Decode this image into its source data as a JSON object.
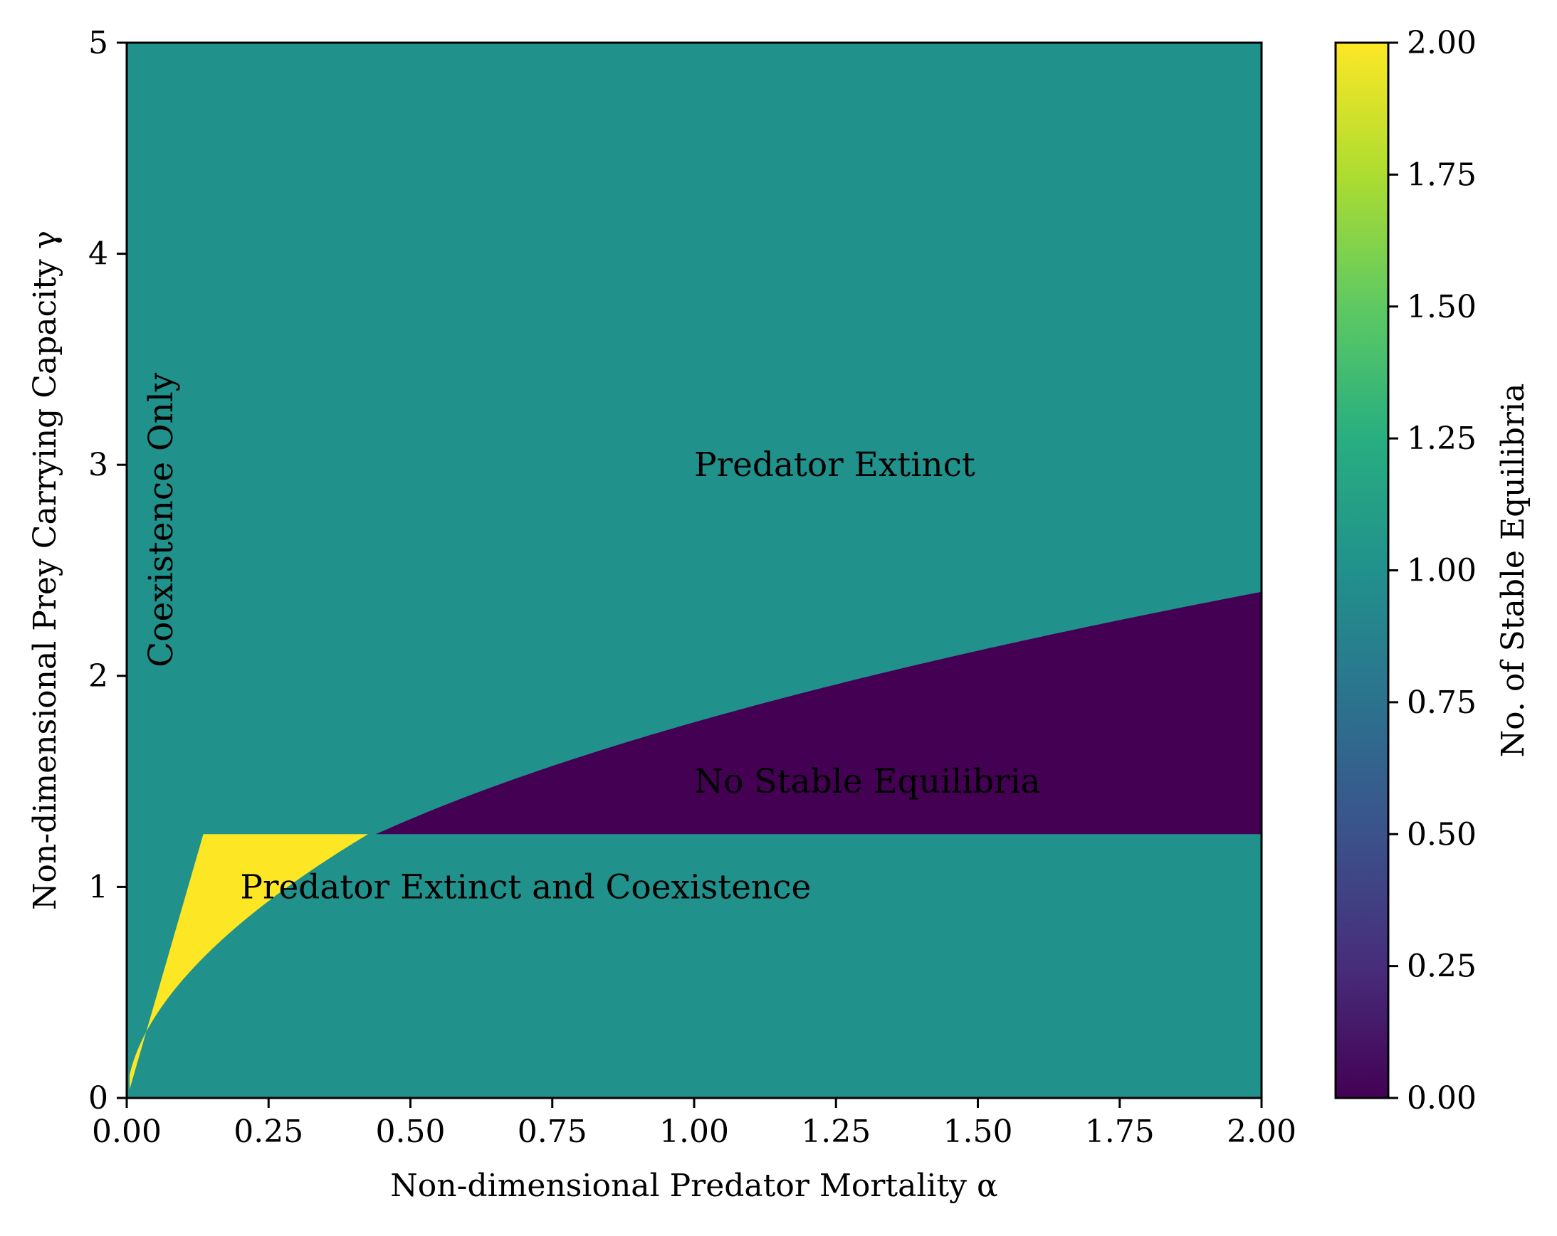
{
  "chart_data": {
    "type": "heatmap",
    "title": "",
    "xlabel": "Non-dimensional Predator Mortality α",
    "ylabel": "Non-dimensional Prey Carrying Capacity γ",
    "xlim": [
      0,
      2
    ],
    "ylim": [
      0,
      5
    ],
    "x_ticks": [
      "0.00",
      "0.25",
      "0.50",
      "0.75",
      "1.00",
      "1.25",
      "1.50",
      "1.75",
      "2.00"
    ],
    "y_ticks": [
      "0",
      "1",
      "2",
      "3",
      "4",
      "5"
    ],
    "colorbar": {
      "label": "No. of Stable Equilibria",
      "range": [
        0,
        2
      ],
      "ticks": [
        "0.00",
        "0.25",
        "0.50",
        "0.75",
        "1.00",
        "1.25",
        "1.50",
        "1.75",
        "2.00"
      ],
      "colormap": "viridis"
    },
    "regions": [
      {
        "label": "Predator Extinct",
        "value": 1,
        "color": "#21918c"
      },
      {
        "label": "No Stable Equilibria",
        "value": 0,
        "color": "#440154"
      },
      {
        "label": "Predator Extinct and Coexistence",
        "value": 2,
        "color": "#fde725"
      },
      {
        "label": "Coexistence Only",
        "value": 1,
        "color": "#21918c"
      }
    ],
    "annotations": [
      {
        "text": "Predator Extinct",
        "x": 1.0,
        "y": 3.0
      },
      {
        "text": "No Stable Equilibria",
        "x": 1.0,
        "y": 1.5
      },
      {
        "text": "Predator Extinct and Coexistence",
        "x": 0.2,
        "y": 1.0
      },
      {
        "text": "Coexistence Only",
        "x": 0.08,
        "y": 2.0,
        "rotation": -90
      }
    ],
    "boundaries": {
      "horizontal_line_gamma": 1.25,
      "yellow_upper_left_alpha_at_top": 0.135,
      "lower_curve": {
        "a": 2.0,
        "b": 0.55
      },
      "purple_upper_curve": {
        "c": 1.78,
        "d": 0.43
      }
    },
    "background_value": 1
  }
}
